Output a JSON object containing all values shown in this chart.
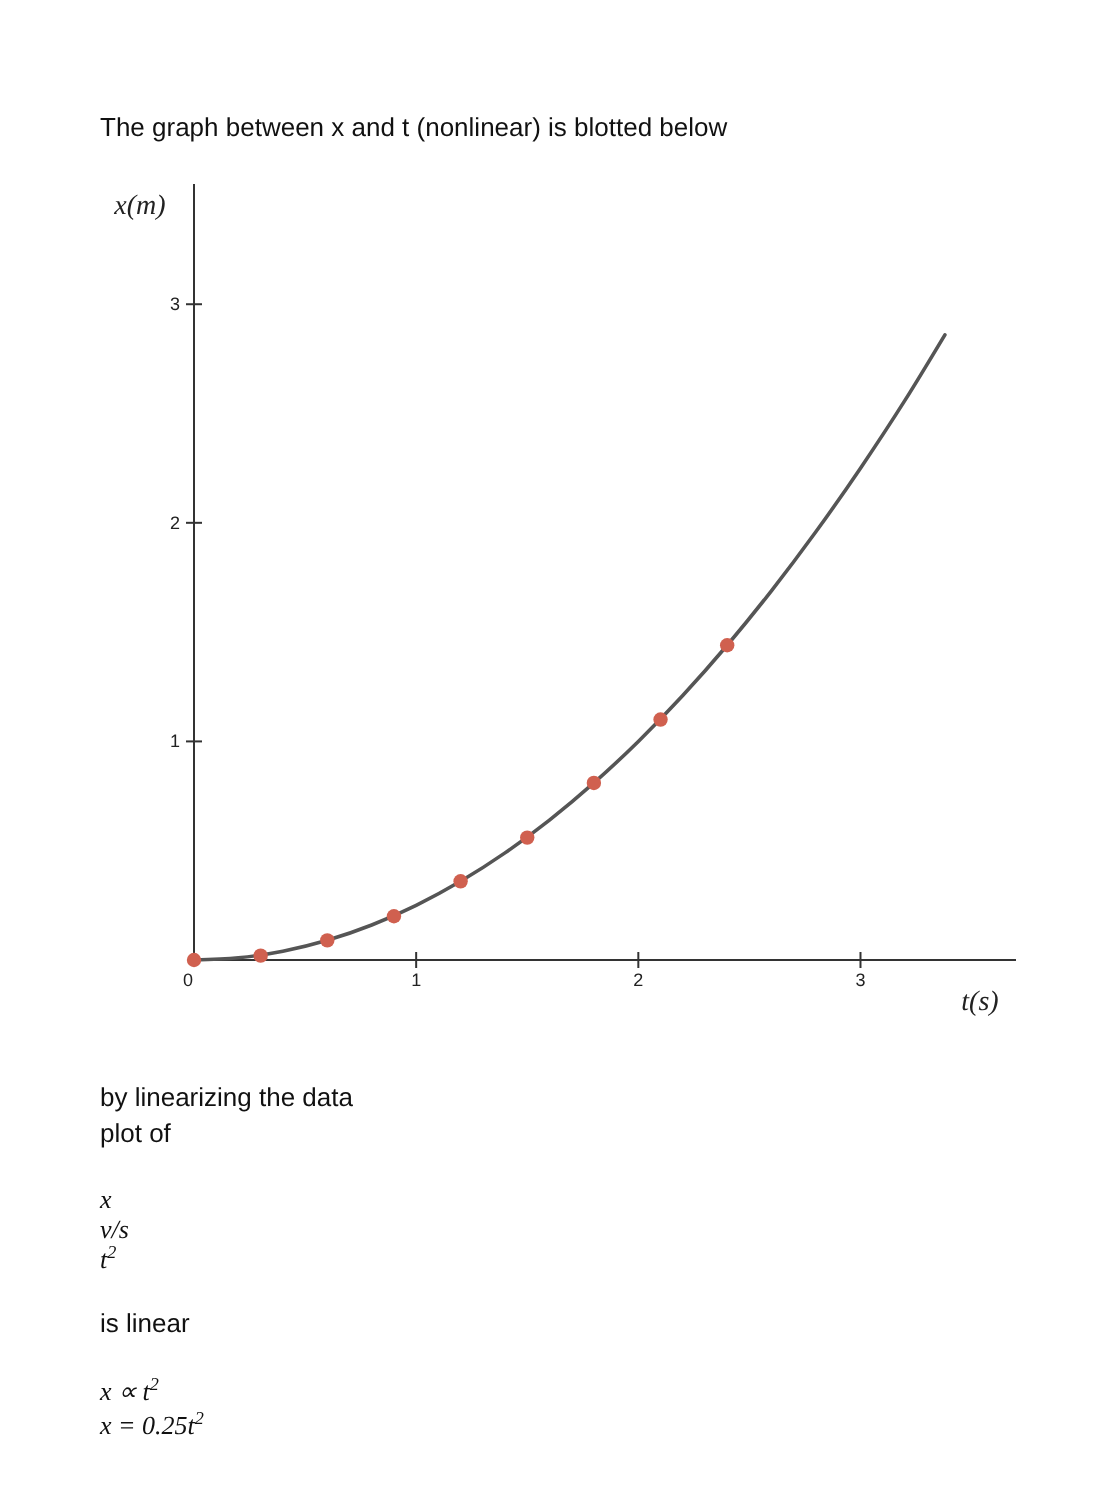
{
  "chart_data": {
    "type": "line",
    "title": "The graph between x and t (nonlinear) is blotted below",
    "xlabel": "t(s)",
    "ylabel": "x(m)",
    "series": [
      {
        "color": "#555555",
        "x": [
          0,
          0.2,
          0.4,
          0.6,
          0.8,
          1,
          1.2,
          1.4,
          1.6,
          1.8,
          2,
          2.2,
          2.4,
          2.6,
          2.8,
          3,
          3.2,
          3.38
        ],
        "values": [
          0,
          0.01,
          0.04,
          0.09,
          0.16,
          0.25,
          0.36,
          0.49,
          0.64,
          0.81,
          1,
          1.21,
          1.44,
          1.69,
          1.96,
          2.25,
          2.56,
          2.86
        ]
      },
      {
        "type": "scatter",
        "marker": "circle",
        "color": "#d0604f",
        "x": [
          0,
          0.3,
          0.6,
          0.9,
          1.2,
          1.5,
          1.8,
          2.1,
          2.4
        ],
        "values": [
          0,
          0.02,
          0.09,
          0.2,
          0.36,
          0.56,
          0.81,
          1.1,
          1.44
        ]
      }
    ],
    "xlim": [
      0,
      3.7
    ],
    "ylim": [
      0,
      3.55
    ],
    "xticks": [
      0,
      1,
      2,
      3
    ],
    "yticks": [
      1,
      2,
      3
    ],
    "grid": false,
    "annotations": [
      "by linearizing the data",
      "plot of",
      "x",
      "v/s",
      "t$^{2}$",
      "is linear",
      "x ∝ t$^{2}$",
      "x = 0.25t$^{2}$"
    ]
  }
}
